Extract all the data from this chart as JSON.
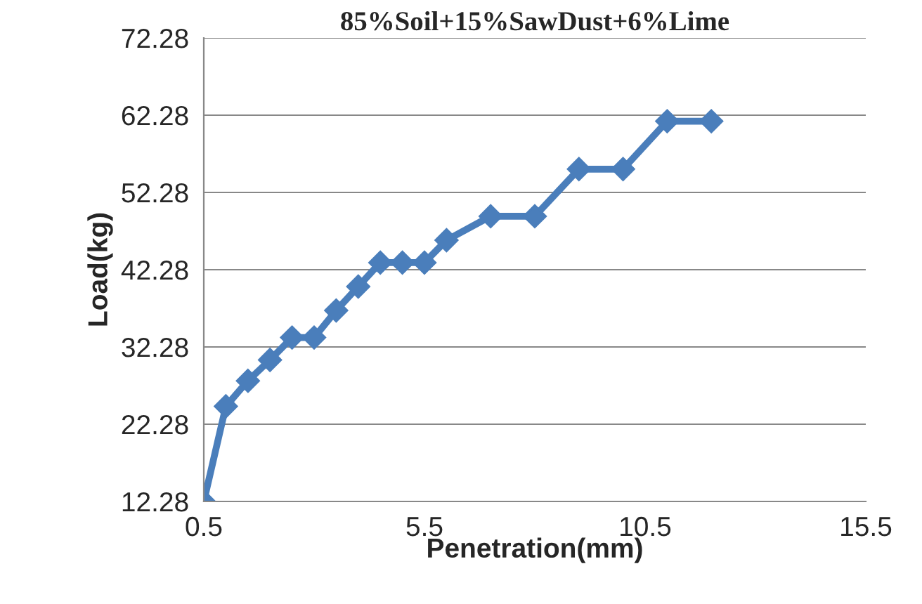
{
  "chart_data": {
    "type": "line",
    "title": "85%Soil+15%SawDust+6%Lime",
    "xlabel": "Penetration(mm)",
    "ylabel": "Load(kg)",
    "x": [
      0.5,
      1,
      1.5,
      2,
      2.5,
      3,
      3.5,
      4,
      4.5,
      5,
      5.5,
      6,
      7,
      8,
      9,
      10,
      11,
      12
    ],
    "series": [
      {
        "color": "#4a7ebb",
        "values": [
          12.28,
          24.6,
          27.9,
          30.6,
          33.5,
          33.5,
          37.0,
          40.1,
          43.2,
          43.2,
          43.2,
          46.1,
          49.2,
          49.2,
          55.3,
          55.3,
          61.5,
          61.5
        ]
      }
    ],
    "xlim": [
      0.5,
      15.5
    ],
    "xticks": [
      0.5,
      5.5,
      10.5,
      15.5
    ],
    "ylim": [
      12.28,
      72.28
    ],
    "yticks": [
      12.28,
      22.28,
      32.28,
      42.28,
      52.28,
      62.28,
      72.28
    ],
    "grid": "y",
    "marker": "diamond",
    "line_style": "solid",
    "legend": false
  }
}
